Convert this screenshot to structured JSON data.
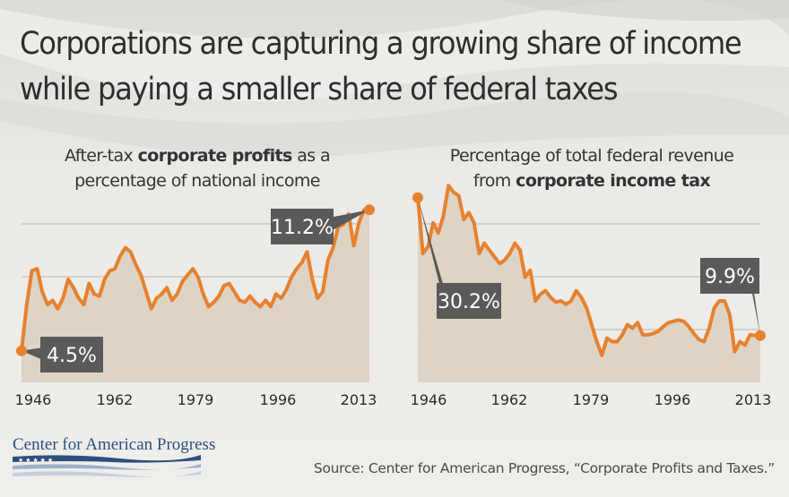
{
  "title_line1": "Corporations are capturing a growing share of income",
  "title_line2": "while paying a smaller share of federal taxes",
  "colors": {
    "line": "#e6812f",
    "fill": "#dcd3c3",
    "callout": "#5a5a5a",
    "grid": "#b8b4ad",
    "brand": "#2c4f7e"
  },
  "left_subtitle": {
    "pre": "After-tax ",
    "bold": "corporate profits",
    "post": " as a",
    "line2": "percentage of national income"
  },
  "right_subtitle": {
    "line1": "Percentage of total federal revenue",
    "pre": "from ",
    "bold": "corporate income tax"
  },
  "chart_data": [
    {
      "type": "area",
      "title": "After-tax corporate profits as a percentage of national income",
      "x_ticks": [
        "1946",
        "1962",
        "1979",
        "1996",
        "2013"
      ],
      "xlim": [
        1946,
        2013
      ],
      "ylim": [
        3,
        13
      ],
      "grid": true,
      "x": [
        1946,
        1947,
        1948,
        1949,
        1950,
        1951,
        1952,
        1953,
        1954,
        1955,
        1956,
        1957,
        1958,
        1959,
        1960,
        1961,
        1962,
        1963,
        1964,
        1965,
        1966,
        1967,
        1968,
        1969,
        1970,
        1971,
        1972,
        1973,
        1974,
        1975,
        1976,
        1977,
        1978,
        1979,
        1980,
        1981,
        1982,
        1983,
        1984,
        1985,
        1986,
        1987,
        1988,
        1989,
        1990,
        1991,
        1992,
        1993,
        1994,
        1995,
        1996,
        1997,
        1998,
        1999,
        2000,
        2001,
        2002,
        2003,
        2004,
        2005,
        2006,
        2007,
        2008,
        2009,
        2010,
        2011,
        2012,
        2013
      ],
      "values": [
        4.5,
        6.7,
        8.3,
        8.4,
        7.3,
        6.7,
        6.9,
        6.5,
        7.0,
        7.9,
        7.5,
        7.0,
        6.7,
        7.7,
        7.2,
        7.1,
        7.9,
        8.3,
        8.4,
        9.0,
        9.4,
        9.2,
        8.6,
        8.1,
        7.3,
        6.5,
        7.0,
        7.2,
        7.5,
        6.9,
        7.2,
        7.8,
        8.1,
        8.4,
        8.0,
        7.2,
        6.6,
        6.8,
        7.1,
        7.6,
        7.7,
        7.3,
        6.9,
        6.8,
        7.1,
        6.8,
        6.6,
        6.9,
        6.6,
        7.2,
        7.0,
        7.4,
        8.0,
        8.4,
        8.7,
        9.2,
        7.9,
        7.0,
        7.3,
        8.8,
        9.4,
        10.4,
        10.5,
        11.0,
        9.5,
        10.6,
        11.2,
        11.2
      ],
      "callouts": [
        {
          "label": "4.5%",
          "index": 0
        },
        {
          "label": "11.2%",
          "index": 67
        }
      ]
    },
    {
      "type": "area",
      "title": "Percentage of total federal revenue from corporate income tax",
      "x_ticks": [
        "1946",
        "1962",
        "1979",
        "1996",
        "2013"
      ],
      "xlim": [
        1946,
        2013
      ],
      "ylim": [
        3,
        34
      ],
      "grid": true,
      "x": [
        1946,
        1947,
        1948,
        1949,
        1950,
        1951,
        1952,
        1953,
        1954,
        1955,
        1956,
        1957,
        1958,
        1959,
        1960,
        1961,
        1962,
        1963,
        1964,
        1965,
        1966,
        1967,
        1968,
        1969,
        1970,
        1971,
        1972,
        1973,
        1974,
        1975,
        1976,
        1977,
        1978,
        1979,
        1980,
        1981,
        1982,
        1983,
        1984,
        1985,
        1986,
        1987,
        1988,
        1989,
        1990,
        1991,
        1992,
        1993,
        1994,
        1995,
        1996,
        1997,
        1998,
        1999,
        2000,
        2001,
        2002,
        2003,
        2004,
        2005,
        2006,
        2007,
        2008,
        2009,
        2010,
        2011,
        2012,
        2013
      ],
      "values": [
        30.2,
        22.0,
        23.0,
        26.5,
        25.0,
        27.5,
        32.0,
        31.0,
        30.5,
        27.0,
        28.0,
        26.5,
        22.0,
        23.5,
        22.5,
        21.5,
        20.5,
        21.0,
        22.0,
        23.5,
        22.5,
        18.5,
        19.5,
        15.0,
        16.0,
        16.5,
        15.5,
        14.8,
        15.0,
        14.5,
        15.0,
        16.5,
        15.5,
        14.0,
        11.5,
        9.0,
        7.0,
        9.5,
        9.0,
        9.0,
        10.0,
        11.5,
        11.0,
        11.8,
        10.0,
        10.0,
        10.2,
        10.5,
        11.2,
        11.8,
        12.0,
        12.2,
        12.0,
        11.2,
        10.2,
        9.3,
        9.0,
        11.0,
        14.0,
        15.0,
        15.0,
        13.0,
        7.5,
        9.0,
        8.5,
        10.0,
        9.9,
        9.9
      ],
      "callouts": [
        {
          "label": "30.2%",
          "index": 0
        },
        {
          "label": "9.9%",
          "index": 67
        }
      ]
    }
  ],
  "logo_text": "Center for American Progress",
  "source": "Source: Center for American Progress, “Corporate Profits and Taxes.”"
}
